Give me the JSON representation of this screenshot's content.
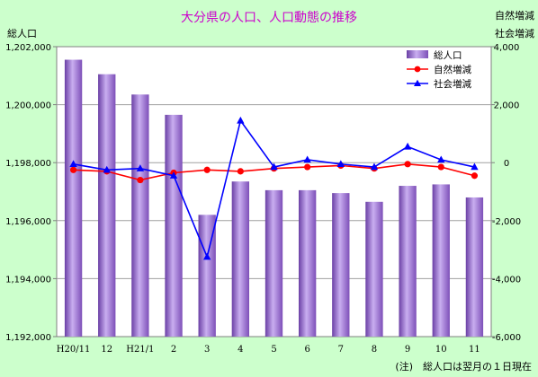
{
  "colors": {
    "background": "#ccffcc",
    "title": "#cc00cc",
    "bar": "#9966cc",
    "natural_line": "#ff0000",
    "social_line": "#0000ff"
  },
  "chart_data": {
    "type": "bar",
    "title": "大分県の人口、人口動態の推移",
    "left_axis_label": "総人口",
    "right_axis_label_1": "自然増減",
    "right_axis_label_2": "社会増減",
    "footnote": "(注)　総人口は翌月の１日現在",
    "categories": [
      "H20/11",
      "12",
      "H21/1",
      "2",
      "3",
      "4",
      "5",
      "6",
      "7",
      "8",
      "9",
      "10",
      "11"
    ],
    "y_left": {
      "min": 1192000,
      "max": 1202000,
      "step": 2000,
      "tick_labels": [
        "1,192,000",
        "1,194,000",
        "1,196,000",
        "1,198,000",
        "1,200,000",
        "1,202,000"
      ]
    },
    "y_right": {
      "min": -6000,
      "max": 4000,
      "step": 2000,
      "tick_labels": [
        "-6,000",
        "-4,000",
        "-2,000",
        "0",
        "2,000",
        "4,000"
      ]
    },
    "series": [
      {
        "name": "総人口",
        "kind": "bar",
        "axis": "left",
        "values": [
          1201550,
          1201050,
          1200350,
          1199650,
          1196200,
          1197350,
          1197050,
          1197050,
          1196950,
          1196650,
          1197200,
          1197250,
          1196800
        ]
      },
      {
        "name": "自然増減",
        "kind": "line",
        "axis": "right",
        "marker": "circle",
        "values": [
          -250,
          -300,
          -600,
          -350,
          -250,
          -300,
          -200,
          -150,
          -100,
          -200,
          -50,
          -150,
          -450
        ]
      },
      {
        "name": "社会増減",
        "kind": "line",
        "axis": "right",
        "marker": "triangle",
        "values": [
          -50,
          -250,
          -200,
          -450,
          -3250,
          1450,
          -150,
          100,
          -50,
          -150,
          550,
          100,
          -150
        ]
      }
    ]
  }
}
